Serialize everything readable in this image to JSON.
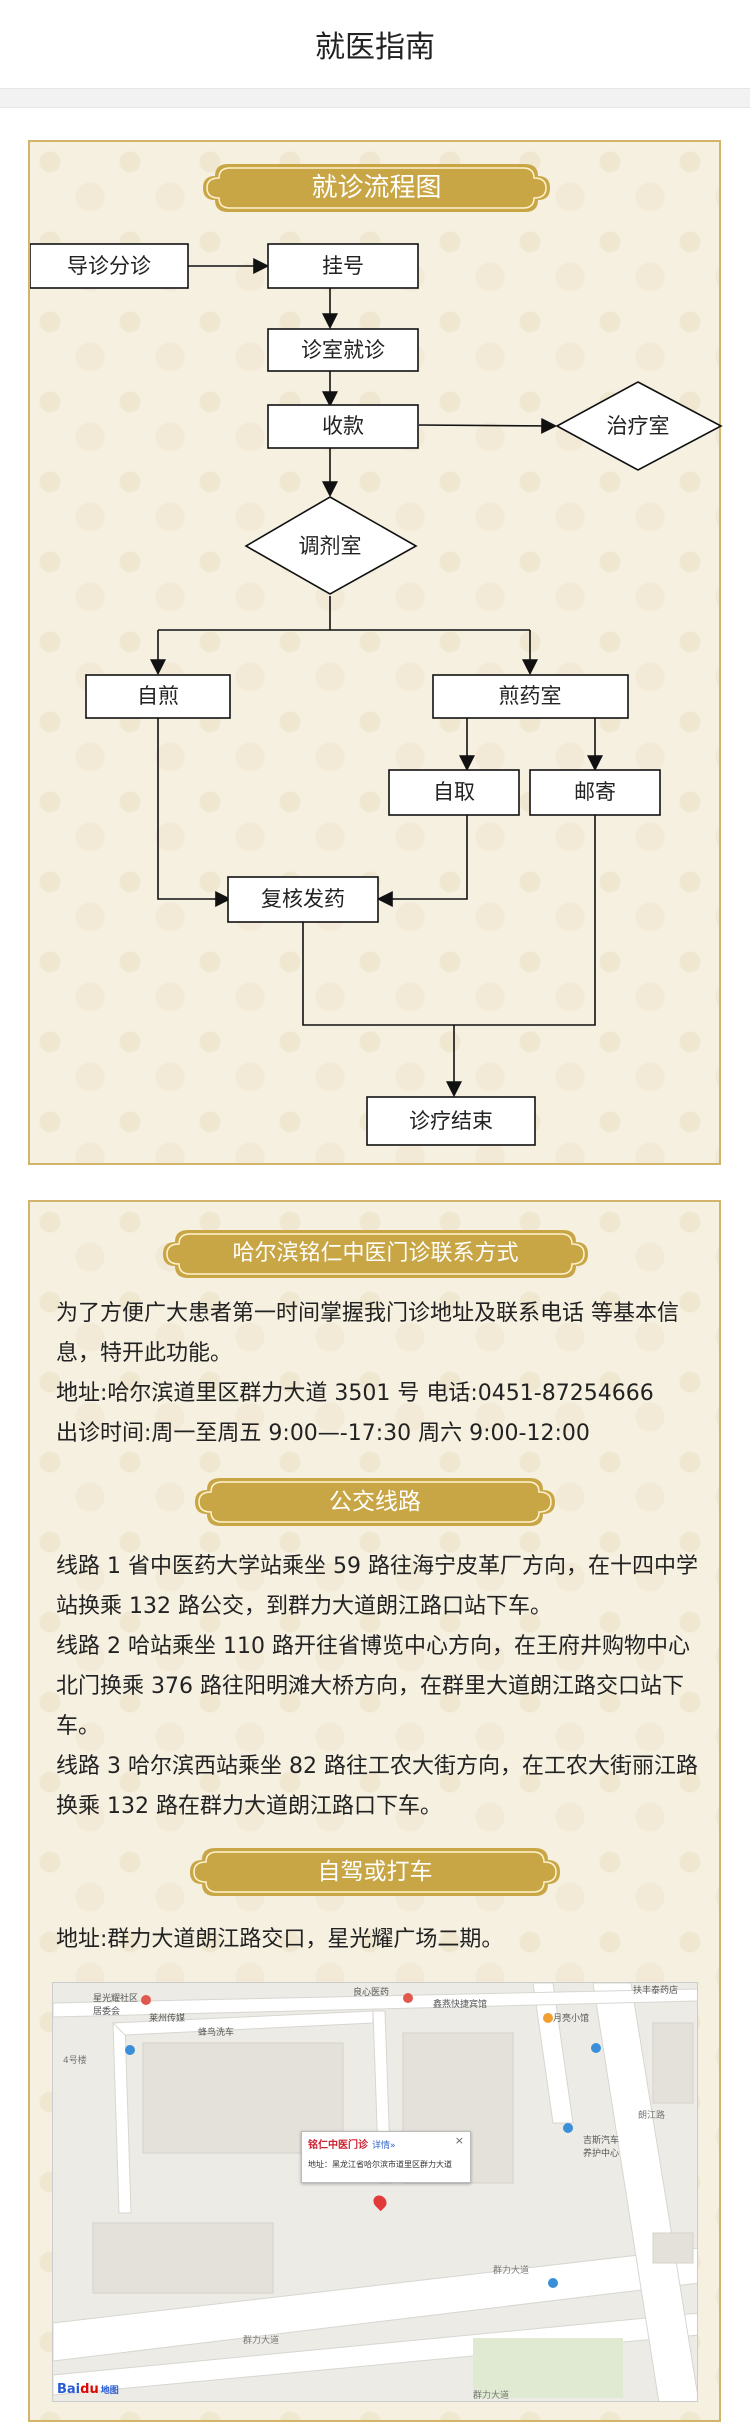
{
  "header": {
    "title": "就医指南"
  },
  "flowchart": {
    "banner": "就诊流程图",
    "nodes": {
      "guide": "导诊分诊",
      "register": "挂号",
      "consult": "诊室就诊",
      "payment": "收款",
      "treatment": "治疗室",
      "pharmacy": "调剂室",
      "self_decoct": "自煎",
      "decoct_room": "煎药室",
      "self_pickup": "自取",
      "mail": "邮寄",
      "review": "复核发药",
      "end": "诊疗结束"
    }
  },
  "contact": {
    "banner": "哈尔滨铭仁中医门诊联系方式",
    "intro": "为了方便广大患者第一时间掌握我门诊地址及联系电话  等基本信息，特开此功能。",
    "address_line": "地址:哈尔滨道里区群力大道 3501 号 电话:0451-87254666",
    "hours_line": "出诊时间:周一至周五 9:00—-17:30 周六 9:00-12:00"
  },
  "bus": {
    "banner": "公交线路",
    "route1": "线路 1 省中医药大学站乘坐 59 路往海宁皮革厂方向，在十四中学站换乘 132 路公交，到群力大道朗江路口站下车。",
    "route2": "线路 2 哈站乘坐 110 路开往省博览中心方向，在王府井购物中心北门换乘 376 路往阳明滩大桥方向，在群里大道朗江路交口站下车。",
    "route3": "线路 3 哈尔滨西站乘坐 82 路往工农大街方向，在工农大街丽江路换乘 132 路在群力大道朗江路口下车。"
  },
  "drive": {
    "banner": "自驾或打车",
    "address": "地址:群力大道朗江路交口，星光耀广场二期。"
  },
  "map": {
    "popup_name": "铭仁中医门诊",
    "popup_detail": "详情»",
    "popup_close": "×",
    "popup_address": "地址：黑龙江省哈尔滨市道里区群力大道",
    "labels": {
      "star_community": "星光耀社区\n居委会",
      "bookstore": "莱州传媒",
      "car_wash": "蜂鸟洗车",
      "clinic_top": "良心医药",
      "express": "鑫燕快捷宾馆",
      "hotpot": "月亮小馆",
      "car_center": "吉斯汽车\n养护中心",
      "qunli_road1": "群力大道",
      "qunli_road2": "群力大道",
      "qunli_road3": "群力大道",
      "langjiang_road": "朗江路",
      "building4": "4号楼",
      "top_right": "扶丰泰药店"
    },
    "logo_bai": "Bai",
    "logo_du": "du",
    "logo_suffix": "地图"
  },
  "colors": {
    "gold": "#c9a645",
    "panel_bg": "#f6f0e1",
    "panel_border": "#d2b46a"
  }
}
